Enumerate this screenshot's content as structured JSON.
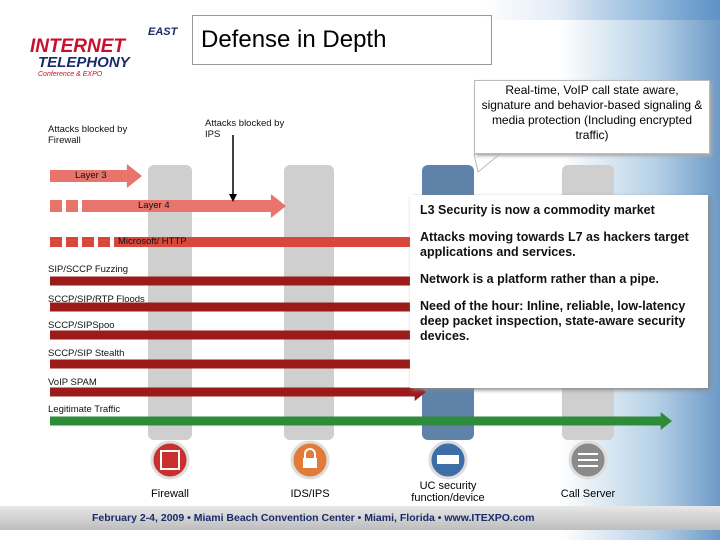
{
  "logo": {
    "region": "EAST",
    "line1": "INTERNET",
    "line2": "TELEPHONY",
    "tagline": "Conference & EXPO"
  },
  "title": "Defense in Depth",
  "callout": "Real-time, VoIP call state aware, signature and behavior-based signaling & media protection (Including encrypted traffic)",
  "annotations": [
    "Attacks blocked by Firewall",
    "Attacks blocked by IPS"
  ],
  "flows": [
    "Layer 3",
    "Layer 4",
    "Microsoft/ HTTP",
    "SIP/SCCP Fuzzing",
    "SCCP/SIP/RTP Floods",
    "SCCP/SIPSpoo",
    "SCCP/SIP Stealth",
    "VoIP SPAM",
    "Legitimate Traffic"
  ],
  "notes": [
    "L3 Security is now a commodity market",
    "Attacks moving towards L7 as hackers target applications and services.",
    "Network is a platform rather than a pipe.",
    "Need of the hour: Inline, reliable, low-latency deep packet inspection, state-aware security devices."
  ],
  "devices": [
    "Firewall",
    "IDS/IPS",
    "UC security function/device",
    "Call Server"
  ],
  "footer": "February 2-4, 2009 • Miami Beach Convention Center • Miami, Florida • www.ITEXPO.com"
}
